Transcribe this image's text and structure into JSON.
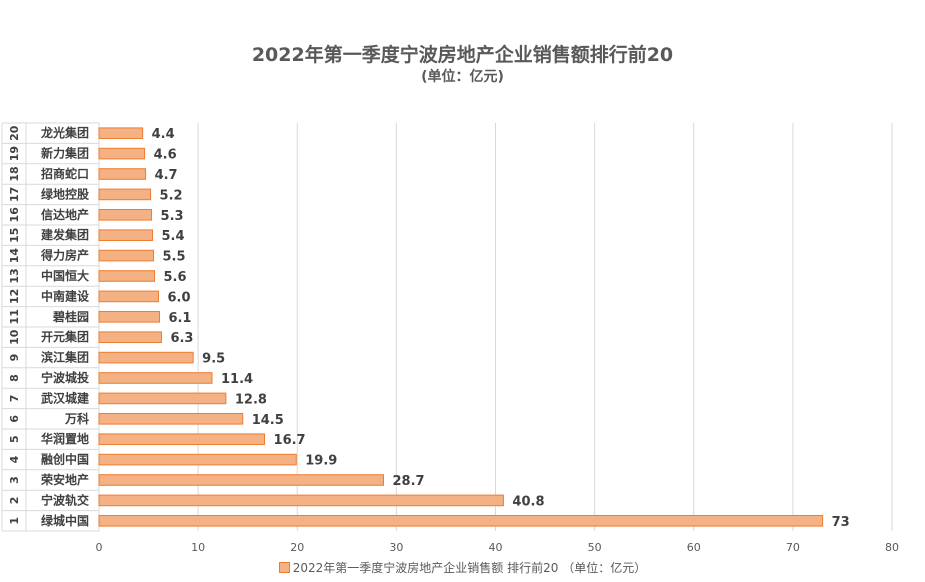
{
  "chart_data": {
    "type": "bar",
    "orientation": "horizontal",
    "title": "2022年第一季度宁波房地产企业销售额排行前20",
    "subtitle": "(单位：亿元)",
    "ranks": [
      "1",
      "2",
      "3",
      "4",
      "5",
      "6",
      "7",
      "8",
      "9",
      "10",
      "11",
      "12",
      "13",
      "14",
      "15",
      "16",
      "17",
      "18",
      "19",
      "20"
    ],
    "categories": [
      "绿城中国",
      "宁波轨交",
      "荣安地产",
      "融创中国",
      "华润置地",
      "万科",
      "武汉城建",
      "宁波城投",
      "滨江集团",
      "开元集团",
      "碧桂园",
      "中南建设",
      "中国恒大",
      "得力房产",
      "建发集团",
      "信达地产",
      "绿地控股",
      "招商蛇口",
      "新力集团",
      "龙光集团"
    ],
    "series": [
      {
        "name": "2022年第一季度宁波房地产企业销售额 排行前20 （单位：亿元）",
        "values": [
          73,
          40.8,
          28.7,
          19.9,
          16.7,
          14.5,
          12.8,
          11.4,
          9.5,
          6.3,
          6.1,
          6.0,
          5.6,
          5.5,
          5.4,
          5.3,
          5.2,
          4.7,
          4.6,
          4.4
        ],
        "value_labels": [
          "73",
          "40.8",
          "28.7",
          "19.9",
          "16.7",
          "14.5",
          "12.8",
          "11.4",
          "9.5",
          "6.3",
          "6.1",
          "6.0",
          "5.6",
          "5.5",
          "5.4",
          "5.3",
          "5.2",
          "4.7",
          "4.6",
          "4.4"
        ]
      }
    ],
    "xlim": [
      0,
      80
    ],
    "xticks": [
      "0",
      "10",
      "20",
      "30",
      "40",
      "50",
      "60",
      "70",
      "80"
    ],
    "grid": true,
    "legend_position": "bottom",
    "colors": {
      "bar_fill": "#f4b183",
      "bar_stroke": "#ed7d31",
      "grid": "#d9d9d9"
    }
  }
}
